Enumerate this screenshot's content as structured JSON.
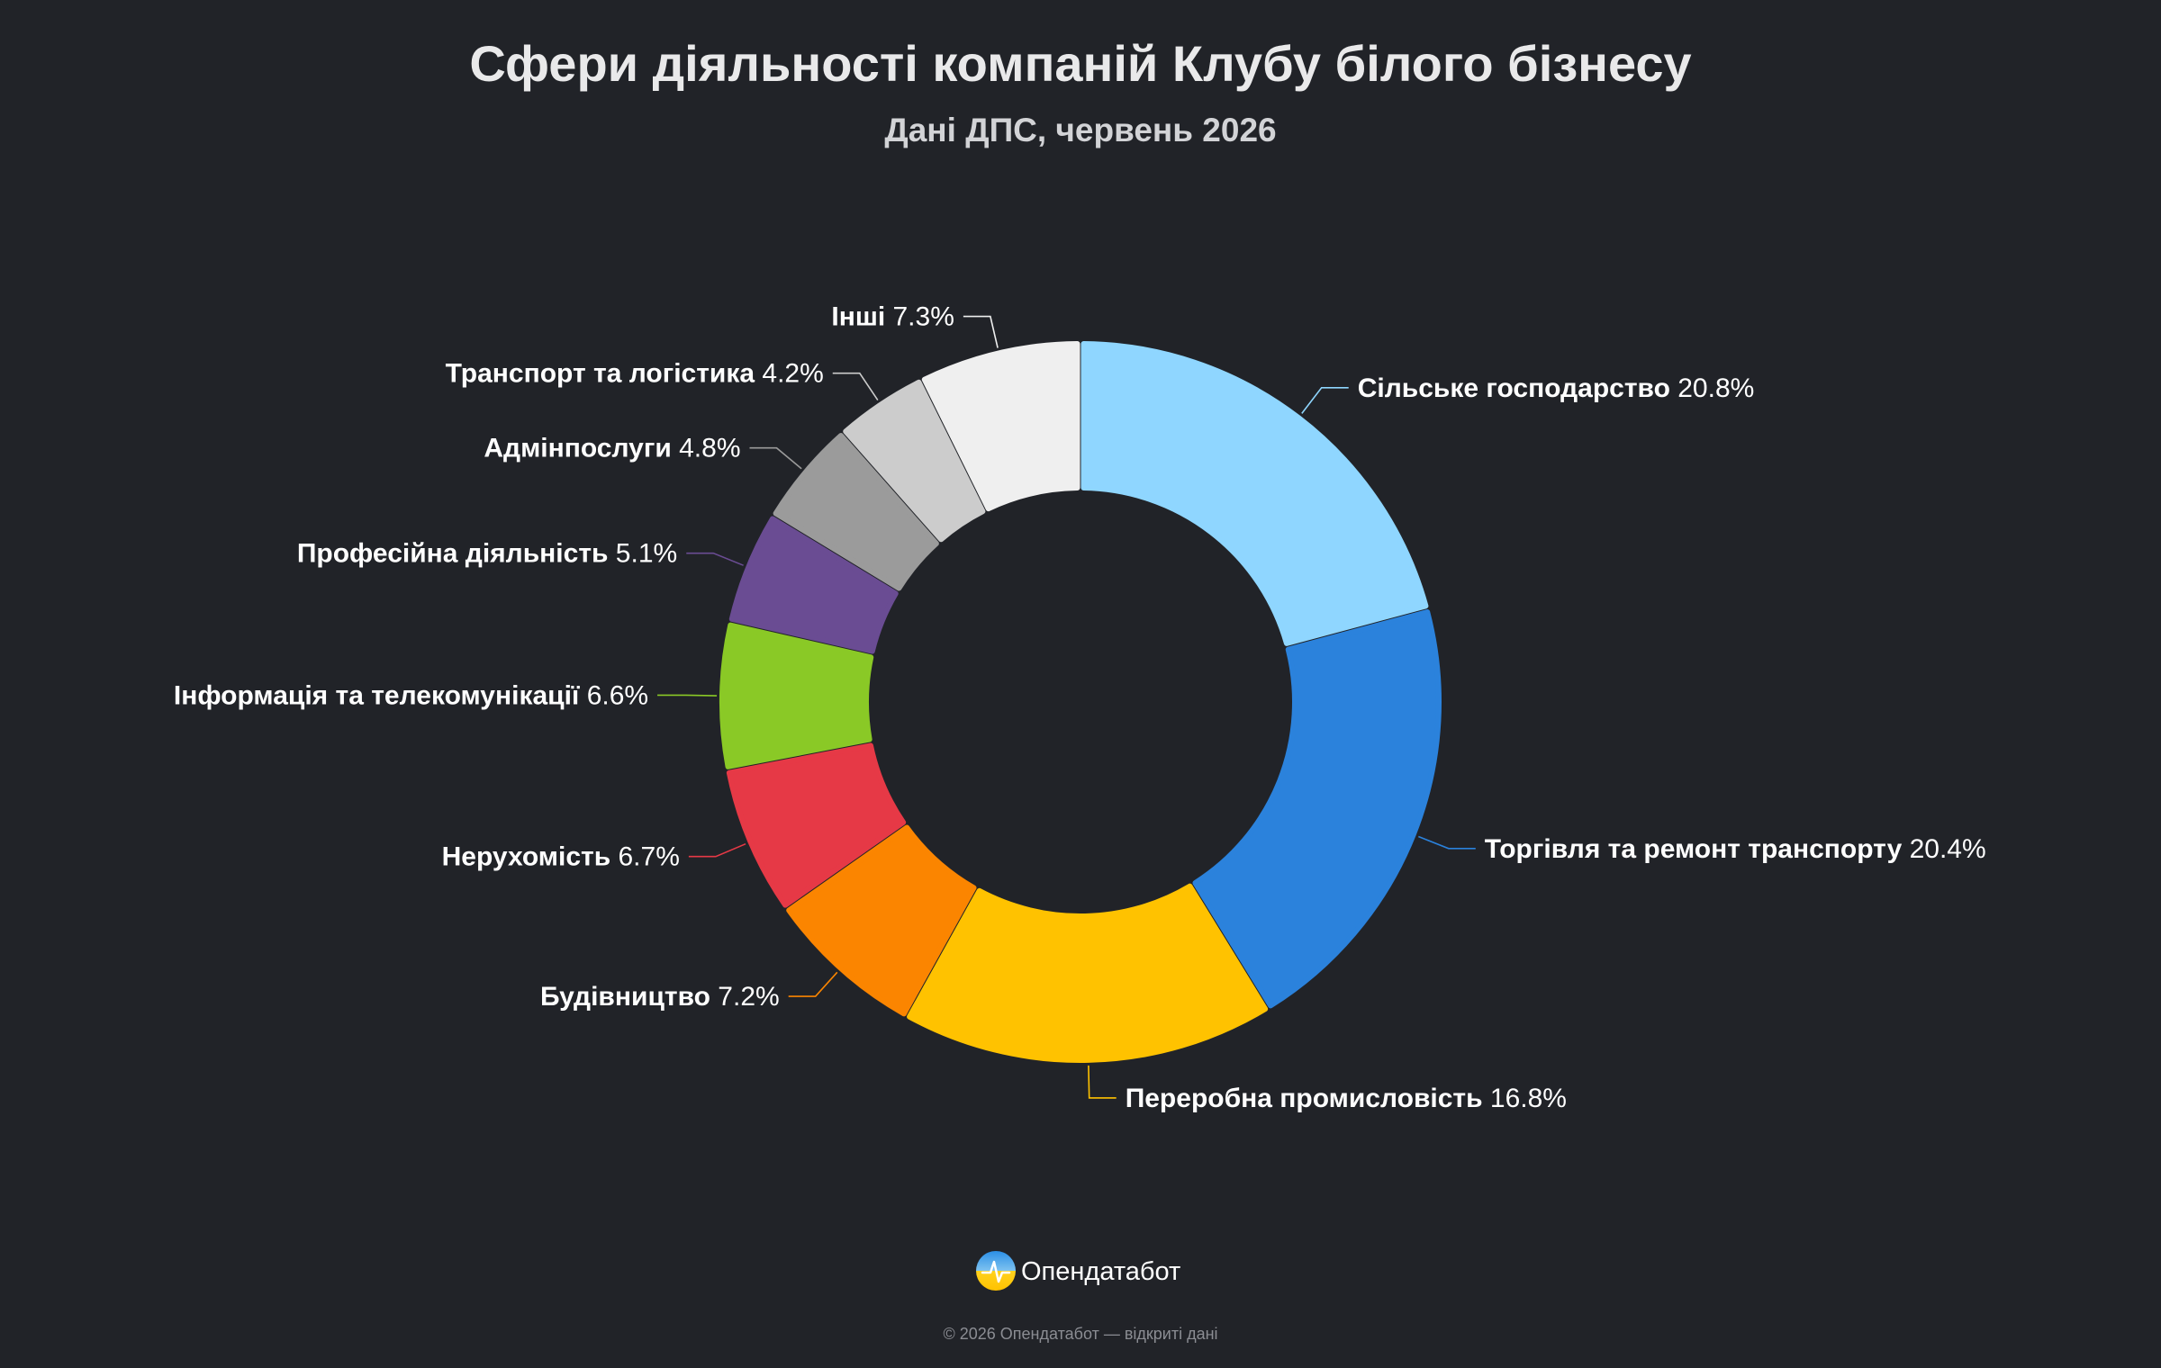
{
  "colors": {
    "background": "#212328",
    "slices": [
      "#8fd6ff",
      "#2b82dc",
      "#ffc200",
      "#fb8500",
      "#e63946",
      "#8ac926",
      "#6a4c93",
      "#9b9b9b",
      "#cccccc",
      "#efefef"
    ]
  },
  "brand": {
    "name": "Опендатабот",
    "logo_icon": "opendatabot-logo-icon"
  },
  "footer": {
    "note": "© 2026 Опендатабот — відкриті дані"
  },
  "chart_data": {
    "type": "pie",
    "variant": "donut",
    "title": "Сфери діяльності компаній Клубу білого бізнесу",
    "subtitle": "Дані ДПС, червень 2026",
    "unit": "%",
    "legend": "none",
    "labels_outside": true,
    "slices": [
      {
        "label": "Сільське господарство",
        "value": 20.8,
        "value_label": "20.8%"
      },
      {
        "label": "Торгівля та ремонт транспорту",
        "value": 20.4,
        "value_label": "20.4%"
      },
      {
        "label": "Переробна промисловість",
        "value": 16.8,
        "value_label": "16.8%"
      },
      {
        "label": "Будівництво",
        "value": 7.2,
        "value_label": "7.2%"
      },
      {
        "label": "Нерухомість",
        "value": 6.7,
        "value_label": "6.7%"
      },
      {
        "label": "Інформація та телекомунікації",
        "value": 6.6,
        "value_label": "6.6%"
      },
      {
        "label": "Професійна діяльність",
        "value": 5.1,
        "value_label": "5.1%"
      },
      {
        "label": "Адмінпослуги",
        "value": 4.8,
        "value_label": "4.8%"
      },
      {
        "label": "Транспорт та логістика",
        "value": 4.2,
        "value_label": "4.2%"
      },
      {
        "label": "Інші",
        "value": 7.3,
        "value_label": "7.3%"
      }
    ]
  }
}
